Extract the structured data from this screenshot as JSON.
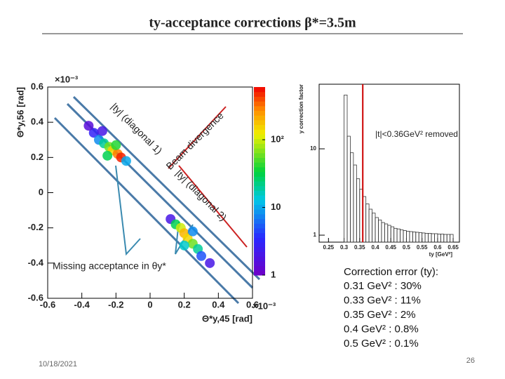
{
  "title": "ty-acceptance corrections β*=3.5m",
  "footer": {
    "date": "10/18/2021",
    "page": "26"
  },
  "notes": {
    "heading": "Correction error (ty):",
    "lines": [
      "0.31 GeV² : 30%",
      "0.33 GeV² : 11%",
      "0.35 GeV² : 2%",
      "0.4 GeV² : 0.8%",
      "0.5 GeV² : 0.1%"
    ]
  },
  "chart_data": [
    {
      "type": "scatter",
      "xlabel": "Θ*y,45 [rad]",
      "ylabel": "Θ*y,56 [rad]",
      "multiplier": "×10⁻³",
      "annotations": [
        "|ty| (diagonal 1)",
        "Beam divergence",
        "|ty| (diagonal 2)",
        "Missing acceptance in θy*"
      ],
      "x": [
        -0.33,
        -0.3,
        -0.27,
        -0.24,
        -0.22,
        -0.19,
        -0.17,
        -0.28,
        -0.2,
        -0.25,
        -0.14,
        -0.36,
        0.12,
        0.15,
        0.18,
        0.2,
        0.22,
        0.25,
        0.28,
        0.3,
        0.35,
        0.2,
        0.25
      ],
      "values": [
        0.34,
        0.3,
        0.28,
        0.26,
        0.24,
        0.22,
        0.2,
        0.35,
        0.27,
        0.21,
        0.18,
        0.38,
        -0.15,
        -0.18,
        -0.2,
        -0.23,
        -0.26,
        -0.29,
        -0.32,
        -0.36,
        -0.4,
        -0.3,
        -0.22
      ],
      "z": [
        3,
        8,
        20,
        60,
        150,
        300,
        500,
        2,
        40,
        30,
        10,
        1.5,
        2,
        30,
        100,
        200,
        150,
        60,
        20,
        5,
        2,
        15,
        8
      ],
      "xlim": [
        -0.6,
        0.6
      ],
      "ylim": [
        -0.6,
        0.6
      ],
      "xticks": [
        -0.6,
        -0.4,
        -0.2,
        0,
        0.2,
        0.4,
        0.6
      ],
      "yticks": [
        -0.6,
        -0.4,
        -0.2,
        0,
        0.2,
        0.4,
        0.6
      ],
      "zlim": [
        1,
        600
      ],
      "zticks": [
        1,
        10,
        {
          "value": 100,
          "label": "10²"
        }
      ],
      "zlog": true
    },
    {
      "type": "histogram",
      "xlabel": "ty [GeV²]",
      "ylabel": "y correction factor",
      "annotation": "|t|<0.36GeV² removed",
      "threshold": 0.36,
      "threshold_color": "#cc0000",
      "bins": [
        0.3,
        0.31,
        0.32,
        0.33,
        0.34,
        0.35,
        0.36,
        0.37,
        0.38,
        0.39,
        0.4,
        0.41,
        0.42,
        0.43,
        0.44,
        0.45,
        0.46,
        0.47,
        0.48,
        0.49,
        0.5,
        0.51,
        0.52,
        0.53,
        0.54,
        0.55,
        0.56,
        0.57,
        0.58,
        0.59,
        0.6,
        0.61,
        0.62,
        0.63,
        0.64,
        0.65
      ],
      "values": [
        42,
        14,
        9,
        6.5,
        4.5,
        3.4,
        2.8,
        2.3,
        2.0,
        1.8,
        1.6,
        1.5,
        1.4,
        1.35,
        1.3,
        1.25,
        1.2,
        1.18,
        1.15,
        1.13,
        1.11,
        1.1,
        1.09,
        1.08,
        1.07,
        1.06,
        1.05,
        1.05,
        1.04,
        1.04,
        1.03,
        1.03,
        1.02,
        1.02,
        1.02
      ],
      "color": "#333333",
      "xlim": [
        0.22,
        0.67
      ],
      "ylim": [
        0.83,
        56
      ],
      "ylog": true,
      "xticks": [
        0.25,
        0.3,
        0.35,
        0.4,
        0.45,
        0.5,
        0.55,
        0.6,
        0.65
      ],
      "yticks": [
        1,
        10
      ]
    }
  ]
}
